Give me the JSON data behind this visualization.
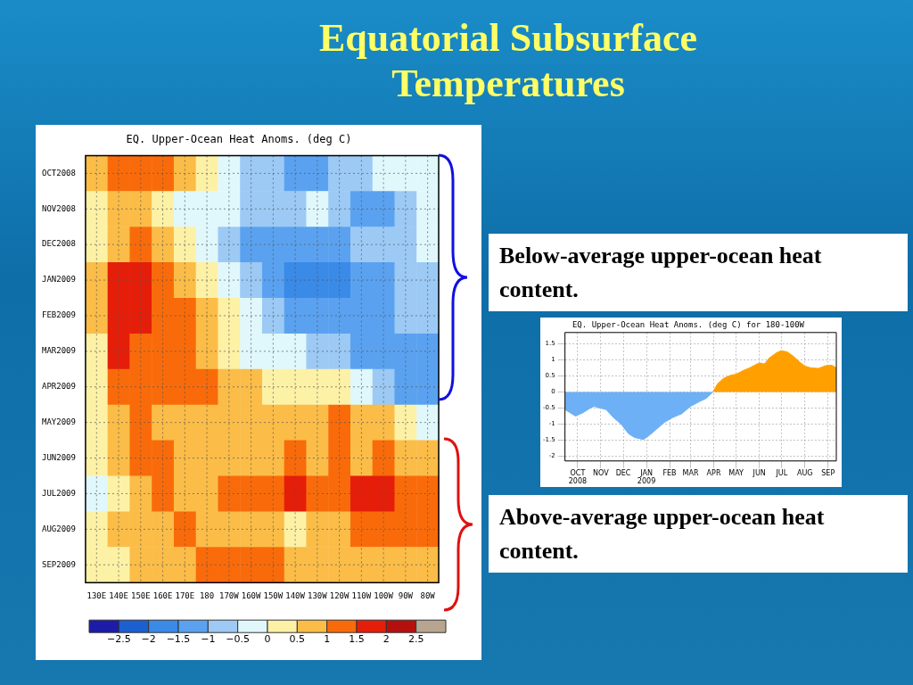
{
  "chart_data": [
    {
      "type": "heatmap",
      "title": "EQ. Upper-Ocean Heat Anoms. (deg C)",
      "categories": [
        "130E",
        "140E",
        "150E",
        "160E",
        "170E",
        "180",
        "170W",
        "160W",
        "150W",
        "140W",
        "130W",
        "120W",
        "110W",
        "100W",
        "90W",
        "80W"
      ],
      "y_categories": [
        "OCT2008",
        "NOV2008",
        "DEC2008",
        "JAN2009",
        "FEB2009",
        "MAR2009",
        "APR2009",
        "MAY2009",
        "JUN2009",
        "JUL2009",
        "AUG2009",
        "SEP2009"
      ],
      "cells": [
        [
          0.75,
          1.25,
          1.25,
          1.25,
          0.75,
          0.25,
          -0.25,
          -0.75,
          -0.75,
          -1.25,
          -1.25,
          -0.75,
          -0.75,
          -0.25,
          -0.25,
          -0.25
        ],
        [
          0.25,
          0.75,
          0.75,
          0.25,
          -0.25,
          -0.25,
          -0.25,
          -0.75,
          -0.75,
          -0.75,
          -0.25,
          -0.75,
          -1.25,
          -1.25,
          -0.75,
          -0.25
        ],
        [
          0.25,
          0.75,
          1.25,
          0.75,
          0.25,
          -0.25,
          -0.75,
          -1.25,
          -1.25,
          -1.25,
          -1.25,
          -1.25,
          -0.75,
          -0.75,
          -0.75,
          -0.25
        ],
        [
          0.75,
          1.75,
          1.75,
          1.25,
          0.75,
          0.25,
          -0.25,
          -0.75,
          -1.25,
          -1.75,
          -1.75,
          -1.75,
          -1.25,
          -1.25,
          -0.75,
          -0.75
        ],
        [
          0.75,
          1.75,
          1.75,
          1.25,
          1.25,
          0.75,
          0.25,
          -0.25,
          -0.75,
          -1.25,
          -1.25,
          -1.25,
          -1.25,
          -1.25,
          -0.75,
          -0.75
        ],
        [
          0.25,
          1.75,
          1.25,
          1.25,
          1.25,
          0.75,
          0.25,
          -0.25,
          -0.25,
          -0.25,
          -0.75,
          -0.75,
          -1.25,
          -1.25,
          -1.25,
          -1.25
        ],
        [
          0.25,
          1.25,
          1.25,
          1.25,
          1.25,
          1.25,
          0.75,
          0.75,
          0.25,
          0.25,
          0.25,
          0.25,
          -0.25,
          -0.75,
          -1.25,
          -1.25
        ],
        [
          0.25,
          0.75,
          1.25,
          0.75,
          0.75,
          0.75,
          0.75,
          0.75,
          0.75,
          0.75,
          0.75,
          1.25,
          0.75,
          0.75,
          0.25,
          -0.25
        ],
        [
          0.25,
          0.75,
          1.25,
          1.25,
          0.75,
          0.75,
          0.75,
          0.75,
          0.75,
          1.25,
          0.75,
          1.25,
          0.75,
          1.25,
          0.75,
          0.75
        ],
        [
          -0.25,
          0.25,
          0.75,
          1.25,
          0.75,
          0.75,
          1.25,
          1.25,
          1.25,
          1.75,
          1.25,
          1.25,
          1.75,
          1.75,
          1.25,
          1.25
        ],
        [
          0.25,
          0.75,
          0.75,
          0.75,
          1.25,
          0.75,
          0.75,
          0.75,
          0.75,
          0.25,
          0.75,
          0.75,
          1.25,
          1.25,
          1.25,
          1.25
        ],
        [
          0.25,
          0.25,
          0.75,
          0.75,
          0.75,
          1.25,
          1.25,
          1.25,
          1.25,
          0.75,
          0.75,
          0.75,
          0.75,
          0.75,
          0.75,
          0.75
        ]
      ],
      "clim": [
        -3,
        3
      ],
      "cticks": [
        -2.5,
        -2,
        -1.5,
        -1,
        -0.5,
        0,
        0.5,
        1,
        1.5,
        2,
        2.5
      ],
      "colors": [
        "#1c1ca8",
        "#1c5fd0",
        "#3a8ae8",
        "#5aa2f0",
        "#9ccaf5",
        "#e0f8fc",
        "#fdf1a6",
        "#fbbd48",
        "#f96b0a",
        "#e51e0a",
        "#b5100e",
        "#b8a590"
      ],
      "grid": true
    },
    {
      "type": "area",
      "title": "EQ. Upper-Ocean Heat Anoms. (deg C) for 180-100W",
      "series": [
        {
          "color": "#6eb0f5",
          "x": [
            "2008-09-14",
            "2008-09-28",
            "2008-10-08",
            "2008-10-18",
            "2008-10-23",
            "2008-10-31",
            "2008-11-08",
            "2008-11-18",
            "2008-11-28",
            "2008-12-08",
            "2008-12-16",
            "2008-12-28",
            "2009-01-05",
            "2009-01-15",
            "2009-01-25",
            "2009-02-05",
            "2009-02-17",
            "2009-03-01",
            "2009-03-13",
            "2009-03-22",
            "2009-03-31"
          ],
          "values": [
            -0.55,
            -0.75,
            -0.65,
            -0.5,
            -0.45,
            -0.5,
            -0.55,
            -0.8,
            -1.0,
            -1.3,
            -1.42,
            -1.48,
            -1.35,
            -1.15,
            -0.95,
            -0.8,
            -0.68,
            -0.45,
            -0.3,
            -0.2,
            0
          ]
        },
        {
          "color": "#ffa000",
          "x": [
            "2009-03-31",
            "2009-04-06",
            "2009-04-14",
            "2009-04-24",
            "2009-05-01",
            "2009-05-09",
            "2009-05-19",
            "2009-05-29",
            "2009-06-02",
            "2009-06-08",
            "2009-06-14",
            "2009-06-24",
            "2009-06-30",
            "2009-07-08",
            "2009-07-16",
            "2009-07-24",
            "2009-08-01",
            "2009-08-09",
            "2009-08-19",
            "2009-08-29",
            "2009-09-06",
            "2009-09-12"
          ],
          "values": [
            0,
            0.25,
            0.42,
            0.52,
            0.55,
            0.65,
            0.75,
            0.87,
            0.9,
            0.87,
            1.05,
            1.22,
            1.28,
            1.25,
            1.12,
            0.95,
            0.8,
            0.75,
            0.73,
            0.82,
            0.83,
            0.75
          ]
        }
      ],
      "xlim": [
        "2008-09-14",
        "2009-09-12"
      ],
      "xticks": [
        {
          "value": "2008-10-01",
          "label": "OCT\n2008"
        },
        {
          "value": "2008-11-01",
          "label": "NOV"
        },
        {
          "value": "2008-12-01",
          "label": "DEC"
        },
        {
          "value": "2009-01-01",
          "label": "JAN\n2009"
        },
        {
          "value": "2009-02-01",
          "label": "FEB"
        },
        {
          "value": "2009-03-01",
          "label": "MAR"
        },
        {
          "value": "2009-04-01",
          "label": "APR"
        },
        {
          "value": "2009-05-01",
          "label": "MAY"
        },
        {
          "value": "2009-06-01",
          "label": "JUN"
        },
        {
          "value": "2009-07-01",
          "label": "JUL"
        },
        {
          "value": "2009-08-01",
          "label": "AUG"
        },
        {
          "value": "2009-09-01",
          "label": "SEP"
        }
      ],
      "ylim": [
        -2.15,
        1.85
      ],
      "yticks": [
        -2,
        -1.5,
        -1,
        -0.5,
        0,
        0.5,
        1,
        1.5
      ],
      "grid": true
    },
    {
      "type": "other",
      "title": "Equatorial Subsurface Temperatures",
      "annotations": [
        "Below-average upper-ocean heat content.",
        "Above-average upper-ocean heat content."
      ]
    }
  ]
}
